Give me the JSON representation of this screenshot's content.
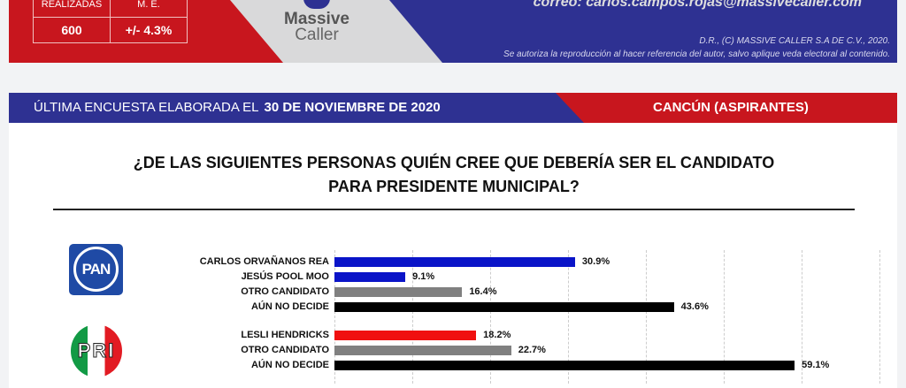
{
  "banner": {
    "stats_header": [
      "REALIZADAS",
      "M. E."
    ],
    "stats_values": [
      "600",
      "+/- 4.3%"
    ],
    "logo": [
      "Massive",
      "Caller"
    ],
    "email": "correo: carlos.campos.rojas@massivecaller.com",
    "copyright": "D.R., (C) MASSIVE CALLER S.A DE C.V., 2020.",
    "notice": "Se autoriza la reproducción al hacer referencia del autor, salvo aplique veda electoral al contenido."
  },
  "header": {
    "prefix": "ÚLTIMA ENCUESTA ELABORADA EL",
    "date": "30 DE NOVIEMBRE DE 2020",
    "location": "CANCÚN (ASPIRANTES)"
  },
  "question": "¿DE LAS SIGUIENTES PERSONAS QUIÉN CREE QUE DEBERÍA SER EL CANDIDATO PARA PRESIDENTE MUNICIPAL?",
  "parties": {
    "pan": "PAN",
    "pri": "PRI"
  },
  "chart_data": {
    "type": "bar",
    "orientation": "horizontal",
    "xlim": [
      0,
      60
    ],
    "grid": true,
    "groups": [
      {
        "party": "PAN",
        "items": [
          {
            "label": "CARLOS ORVAÑANOS REA",
            "value": 30.9,
            "text": "30.9%",
            "color": "#0a14c8"
          },
          {
            "label": "JESÚS POOL MOO",
            "value": 9.1,
            "text": "9.1%",
            "color": "#0a14c8"
          },
          {
            "label": "OTRO CANDIDATO",
            "value": 16.4,
            "text": "16.4%",
            "color": "#808080"
          },
          {
            "label": "AÚN NO DECIDE",
            "value": 43.6,
            "text": "43.6%",
            "color": "#000000"
          }
        ]
      },
      {
        "party": "PRI",
        "items": [
          {
            "label": "LESLI HENDRICKS",
            "value": 18.2,
            "text": "18.2%",
            "color": "#f01010"
          },
          {
            "label": "OTRO CANDIDATO",
            "value": 22.7,
            "text": "22.7%",
            "color": "#808080"
          },
          {
            "label": "AÚN NO DECIDE",
            "value": 59.1,
            "text": "59.1%",
            "color": "#000000"
          }
        ]
      }
    ]
  }
}
